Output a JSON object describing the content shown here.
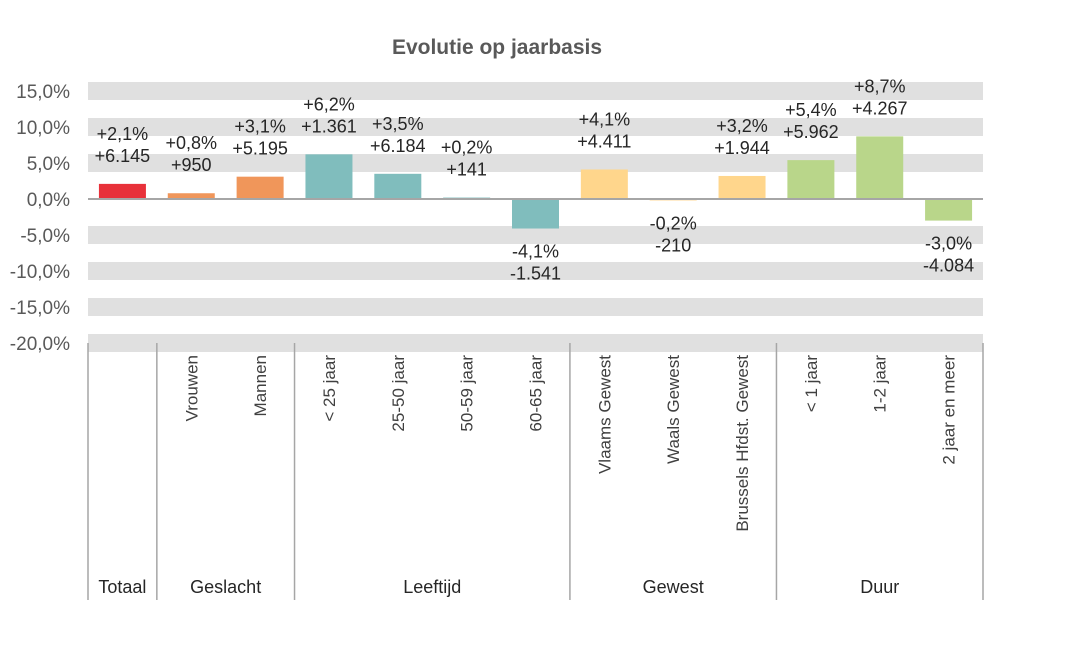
{
  "chart_data": {
    "type": "bar",
    "title": "Evolutie op jaarbasis",
    "xlabel": "",
    "ylabel": "",
    "ylim": [
      -20,
      15
    ],
    "yticks": [
      "15,0%",
      "10,0%",
      "5,0%",
      "0,0%",
      "-5,0%",
      "-10,0%",
      "-15,0%",
      "-20,0%"
    ],
    "ytick_values": [
      15,
      10,
      5,
      0,
      -5,
      -10,
      -15,
      -20
    ],
    "grid": "alternating bands",
    "legend": "none",
    "categories": [
      "",
      "Vrouwen",
      "Mannen",
      "< 25 jaar",
      "25-50 jaar",
      "50-59 jaar",
      "60-65 jaar",
      "Vlaams Gewest",
      "Waals Gewest",
      "Brussels Hfdst. Gewest",
      "< 1 jaar",
      "1-2 jaar",
      "2 jaar en meer"
    ],
    "values": [
      2.1,
      0.8,
      3.1,
      6.2,
      3.5,
      0.2,
      -4.1,
      4.1,
      -0.2,
      3.2,
      5.4,
      8.7,
      -3.0
    ],
    "pct_labels": [
      "+2,1%",
      "+0,8%",
      "+3,1%",
      "+6,2%",
      "+3,5%",
      "+0,2%",
      "-4,1%",
      "+4,1%",
      "-0,2%",
      "+3,2%",
      "+5,4%",
      "+8,7%",
      "-3,0%"
    ],
    "abs_labels": [
      "+6.145",
      "+950",
      "+5.195",
      "+1.361",
      "+6.184",
      "+141",
      "-1.541",
      "+4.411",
      "-210",
      "+1.944",
      "+5.962",
      "+4.267",
      "-4.084"
    ],
    "colors": [
      "#E8313A",
      "#F0965A",
      "#F0965A",
      "#80BDBD",
      "#80BDBD",
      "#80BDBD",
      "#80BDBD",
      "#FFD68C",
      "#FFD68C",
      "#FFD68C",
      "#B9D68A",
      "#B9D68A",
      "#B9D68A"
    ],
    "groups": [
      {
        "label": "Totaal",
        "count": 1
      },
      {
        "label": "Geslacht",
        "count": 2
      },
      {
        "label": "Leeftijd",
        "count": 4
      },
      {
        "label": "Gewest",
        "count": 3
      },
      {
        "label": "Duur",
        "count": 3
      }
    ]
  }
}
